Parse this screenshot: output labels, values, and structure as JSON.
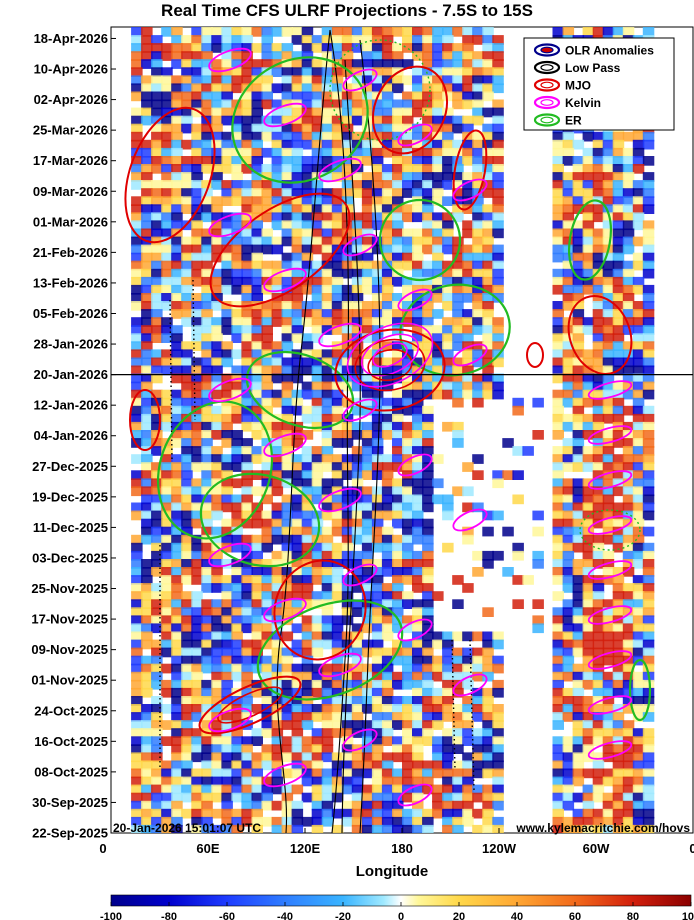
{
  "chart_data": {
    "type": "heatmap",
    "title": "Real Time CFS ULRF Projections - 7.5S to 15S",
    "xlabel": "Longitude",
    "ylabel": "",
    "x_ticks": [
      "0",
      "60E",
      "120E",
      "180",
      "120W",
      "60W",
      "0"
    ],
    "x_tick_values": [
      0,
      60,
      120,
      180,
      240,
      300,
      360
    ],
    "xlim": [
      0,
      360
    ],
    "y_ticks": [
      "22-Sep-2025",
      "30-Sep-2025",
      "08-Oct-2025",
      "16-Oct-2025",
      "24-Oct-2025",
      "01-Nov-2025",
      "09-Nov-2025",
      "17-Nov-2025",
      "25-Nov-2025",
      "03-Dec-2025",
      "11-Dec-2025",
      "19-Dec-2025",
      "27-Dec-2025",
      "04-Jan-2026",
      "12-Jan-2026",
      "20-Jan-2026",
      "28-Jan-2026",
      "05-Feb-2026",
      "13-Feb-2026",
      "21-Feb-2026",
      "01-Mar-2026",
      "09-Mar-2026",
      "17-Mar-2026",
      "25-Mar-2026",
      "02-Apr-2026",
      "10-Apr-2026",
      "18-Apr-2026"
    ],
    "ylim": [
      "22-Sep-2025",
      "21-Apr-2026"
    ],
    "reference_line": "20-Jan-2026",
    "colorbar": {
      "ticks": [
        -100,
        -80,
        -60,
        -40,
        -20,
        0,
        20,
        40,
        60,
        80,
        100
      ],
      "range": [
        -100,
        100
      ]
    },
    "legend": {
      "placement": "top-right",
      "entries": [
        {
          "name": "OLR Anomalies",
          "color": "#00008b"
        },
        {
          "name": "Low Pass",
          "color": "#000000"
        },
        {
          "name": "MJO",
          "color": "#e00000"
        },
        {
          "name": "Kelvin",
          "color": "#ff00ff"
        },
        {
          "name": "ER",
          "color": "#22bb22"
        }
      ]
    },
    "annotations": {
      "timestamp": "20-Jan-2026 15:01:07 UTC",
      "url": "www.kylemacritchie.com/hovs"
    }
  },
  "colors": {
    "mjo": "#e00000",
    "kelvin": "#ff00ff",
    "er": "#22bb22",
    "lowpass": "#000000"
  }
}
